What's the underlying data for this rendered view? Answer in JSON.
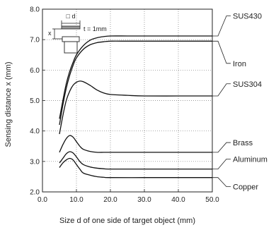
{
  "chart_data": {
    "type": "line",
    "xlabel": "Size d of one side of target object (mm)",
    "ylabel": "Sensing distance x (mm)",
    "xlim": [
      0,
      50
    ],
    "ylim": [
      2,
      8
    ],
    "xticks": [
      "0.0",
      "10.0",
      "20.0",
      "30.0",
      "40.0",
      "50.0"
    ],
    "yticks": [
      "2.0",
      "3.0",
      "4.0",
      "5.0",
      "6.0",
      "7.0",
      "8.0"
    ],
    "grid": "dotted",
    "series": [
      {
        "name": "SUS430",
        "x": [
          5,
          6,
          7,
          8,
          9,
          10,
          12,
          14,
          16,
          18,
          20,
          25,
          30,
          40,
          50
        ],
        "y": [
          4.4,
          5.0,
          5.55,
          5.95,
          6.25,
          6.5,
          6.8,
          6.98,
          7.06,
          7.1,
          7.12,
          7.12,
          7.12,
          7.12,
          7.12
        ]
      },
      {
        "name": "Iron",
        "x": [
          5,
          6,
          7,
          8,
          9,
          10,
          12,
          14,
          16,
          18,
          20,
          25,
          30,
          40,
          50
        ],
        "y": [
          4.2,
          4.85,
          5.4,
          5.82,
          6.15,
          6.4,
          6.68,
          6.83,
          6.9,
          6.93,
          6.95,
          6.95,
          6.95,
          6.95,
          6.95
        ]
      },
      {
        "name": "SUS304",
        "x": [
          5,
          6,
          7,
          8,
          9,
          10,
          11,
          12,
          14,
          16,
          18,
          20,
          25,
          30,
          40,
          50
        ],
        "y": [
          3.9,
          4.5,
          5.0,
          5.3,
          5.5,
          5.6,
          5.64,
          5.62,
          5.5,
          5.35,
          5.25,
          5.2,
          5.17,
          5.15,
          5.15,
          5.15
        ]
      },
      {
        "name": "Brass",
        "x": [
          5,
          6,
          7,
          8,
          9,
          10,
          11,
          12,
          14,
          16,
          18,
          20,
          30,
          40,
          50
        ],
        "y": [
          3.3,
          3.55,
          3.75,
          3.85,
          3.8,
          3.65,
          3.5,
          3.4,
          3.33,
          3.3,
          3.3,
          3.3,
          3.3,
          3.3,
          3.3
        ]
      },
      {
        "name": "Aluminum",
        "x": [
          5,
          6,
          7,
          8,
          9,
          10,
          11,
          12,
          14,
          16,
          18,
          20,
          30,
          40,
          50
        ],
        "y": [
          2.95,
          3.1,
          3.25,
          3.32,
          3.28,
          3.15,
          3.0,
          2.9,
          2.82,
          2.78,
          2.76,
          2.75,
          2.75,
          2.75,
          2.75
        ]
      },
      {
        "name": "Copper",
        "x": [
          5,
          6,
          7,
          8,
          9,
          10,
          11,
          12,
          14,
          16,
          18,
          20,
          30,
          40,
          50
        ],
        "y": [
          2.8,
          2.95,
          3.05,
          3.1,
          3.05,
          2.9,
          2.75,
          2.62,
          2.55,
          2.5,
          2.48,
          2.47,
          2.47,
          2.47,
          2.47
        ]
      }
    ],
    "inset": {
      "d_label": "□ d",
      "x_label": "x",
      "t_label": "t = 1mm"
    }
  }
}
